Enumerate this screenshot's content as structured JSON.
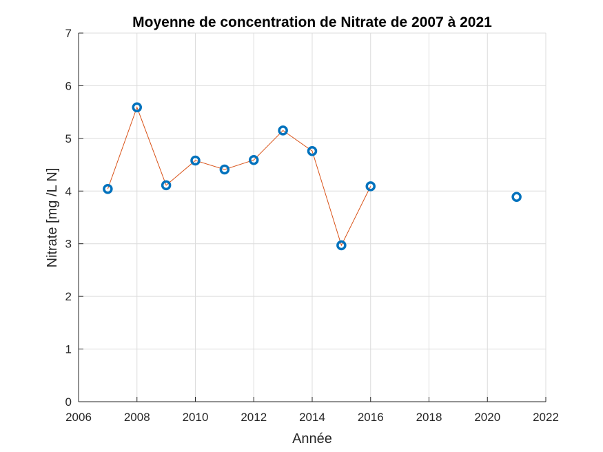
{
  "chart_data": {
    "type": "line",
    "title": "Moyenne de concentration de Nitrate de 2007 à 2021",
    "xlabel": "Année",
    "ylabel": "Nitrate [mg /L N]",
    "xlim": [
      2006,
      2022
    ],
    "ylim": [
      0,
      7
    ],
    "xticks": [
      2006,
      2008,
      2010,
      2012,
      2014,
      2016,
      2018,
      2020,
      2022
    ],
    "yticks": [
      0,
      1,
      2,
      3,
      4,
      5,
      6,
      7
    ],
    "grid": true,
    "series": [
      {
        "x": [
          2007,
          2008,
          2009,
          2010,
          2011,
          2012,
          2013,
          2014,
          2015,
          2016,
          2021
        ],
        "y": [
          4.04,
          5.59,
          4.11,
          4.58,
          4.41,
          4.59,
          5.15,
          4.76,
          2.97,
          4.09,
          3.89
        ],
        "line_segments": [
          [
            2007,
            2008,
            2009,
            2010,
            2011,
            2012,
            2013,
            2014,
            2015,
            2016
          ]
        ],
        "marker": "o",
        "marker_color": "#0072bd",
        "line_color": "#d95319"
      }
    ]
  }
}
